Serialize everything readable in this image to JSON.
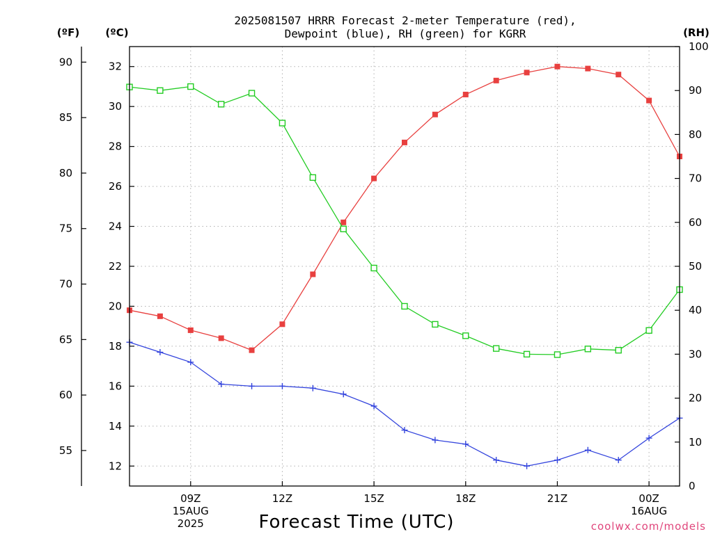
{
  "chart_data": {
    "type": "line",
    "title_lines": [
      "2025081507 HRRR Forecast 2-meter Temperature (red),",
      "Dewpoint (blue), RH (green) for KGRR"
    ],
    "xlabel": "Forecast Time (UTC)",
    "credit": "coolwx.com/models",
    "unit_labels": {
      "fahrenheit": "(ºF)",
      "celsius": "(ºC)",
      "rh": "(RH)"
    },
    "x_hours": [
      7,
      8,
      9,
      10,
      11,
      12,
      13,
      14,
      15,
      16,
      17,
      18,
      19,
      20,
      21,
      22,
      23,
      24,
      25
    ],
    "x_ticks": [
      {
        "hour": 9,
        "lines": [
          "09Z",
          "15AUG",
          "2025"
        ]
      },
      {
        "hour": 12,
        "lines": [
          "12Z"
        ]
      },
      {
        "hour": 15,
        "lines": [
          "15Z"
        ]
      },
      {
        "hour": 18,
        "lines": [
          "18Z"
        ]
      },
      {
        "hour": 21,
        "lines": [
          "21Z"
        ]
      },
      {
        "hour": 24,
        "lines": [
          "00Z",
          "16AUG"
        ]
      }
    ],
    "xlim": [
      7,
      25
    ],
    "celsius_axis": {
      "ylim": [
        11,
        33
      ],
      "ticks": [
        12,
        14,
        16,
        18,
        20,
        22,
        24,
        26,
        28,
        30,
        32
      ]
    },
    "fahrenheit_axis": {
      "ticks": [
        55,
        60,
        65,
        70,
        75,
        80,
        85,
        90
      ]
    },
    "rh_axis": {
      "ylim": [
        0,
        100
      ],
      "ticks": [
        0,
        10,
        20,
        30,
        40,
        50,
        60,
        70,
        80,
        90,
        100
      ]
    },
    "grid": true,
    "series": [
      {
        "name": "Temperature",
        "axis": "celsius",
        "color": "#e8403f",
        "marker": "filled-square",
        "values": [
          19.8,
          19.5,
          18.8,
          18.4,
          17.8,
          19.1,
          21.6,
          24.2,
          26.4,
          28.2,
          29.6,
          30.6,
          31.3,
          31.7,
          32.0,
          31.9,
          31.6,
          30.3,
          27.5
        ]
      },
      {
        "name": "Dewpoint",
        "axis": "celsius",
        "color": "#3344dd",
        "marker": "plus",
        "values": [
          18.2,
          17.7,
          17.2,
          16.1,
          16.0,
          16.0,
          15.9,
          15.6,
          15.0,
          13.8,
          13.3,
          13.1,
          12.3,
          12.0,
          12.3,
          12.8,
          12.3,
          13.4,
          14.4
        ]
      },
      {
        "name": "RH",
        "axis": "rh",
        "color": "#22cc22",
        "marker": "open-square",
        "values": [
          90.8,
          90.0,
          90.9,
          86.9,
          89.4,
          82.6,
          70.2,
          58.5,
          49.6,
          40.9,
          36.8,
          34.2,
          31.3,
          30.0,
          29.9,
          31.2,
          30.9,
          35.4,
          44.7
        ]
      }
    ]
  }
}
